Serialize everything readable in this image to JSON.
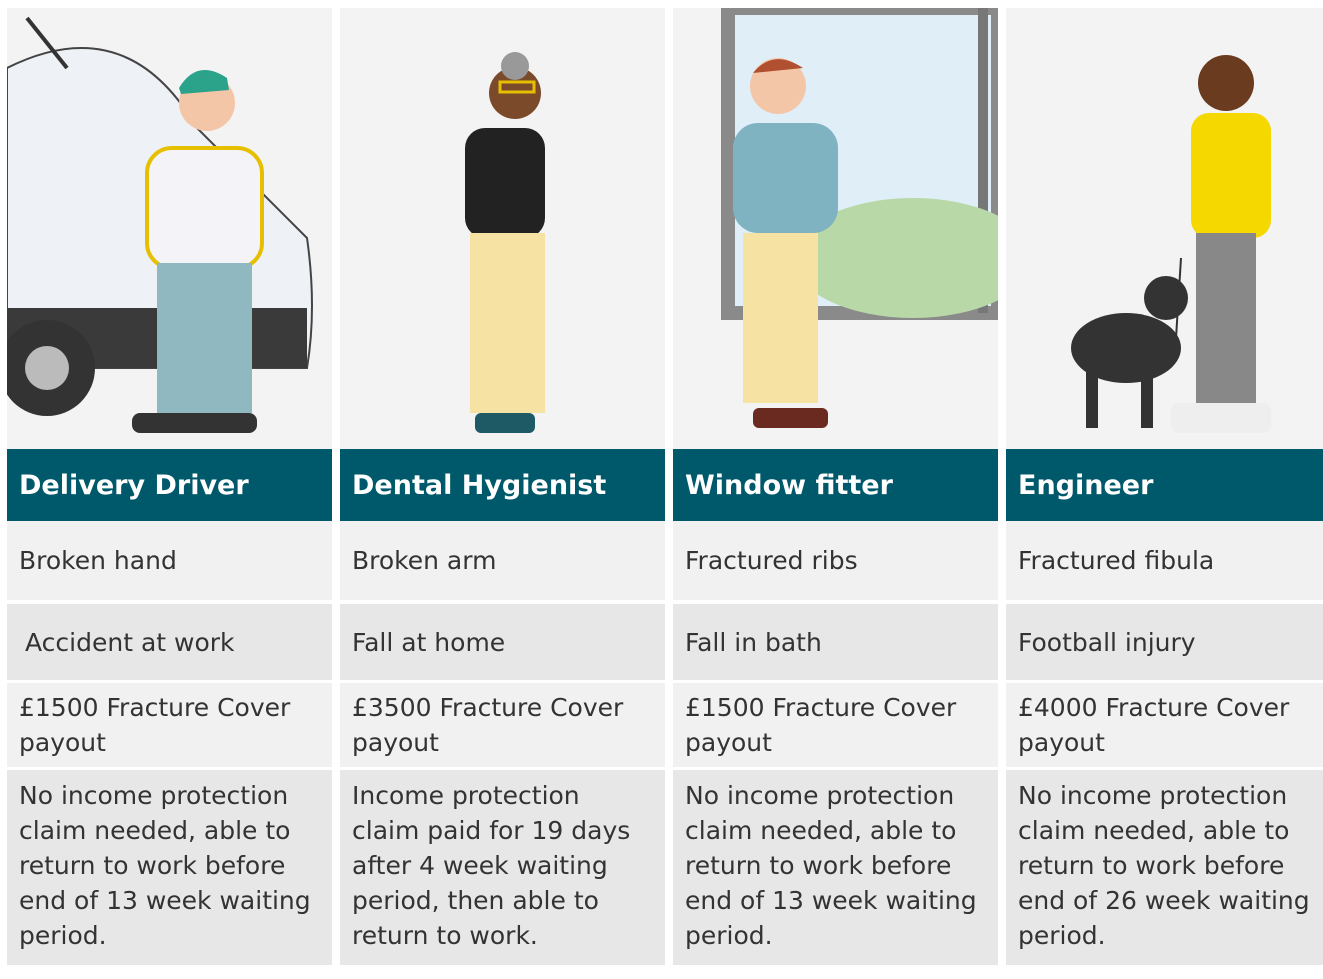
{
  "columns": [
    {
      "title": "Delivery Driver",
      "injury": "Broken hand",
      "cause": "Accident at work",
      "payout": "£1500 Fracture Cover payout",
      "claim": "No income protection claim needed, able to return to work before end of 13 week waiting period."
    },
    {
      "title": "Dental Hygienist",
      "injury": "Broken arm",
      "cause": "Fall at home",
      "payout": "£3500 Fracture Cover payout",
      "claim": "Income protection claim paid for 19 days after 4 week waiting period, then able to return to work."
    },
    {
      "title": "Window fitter",
      "injury": "Fractured ribs",
      "cause": "Fall in bath",
      "payout": "£1500 Fracture Cover payout",
      "claim": "No income protection claim needed, able to return to work before end of 13 week waiting period."
    },
    {
      "title": "Engineer",
      "injury": "Fractured fibula",
      "cause": "Football injury",
      "payout": "£4000 Fracture Cover payout",
      "claim": "No income protection claim needed, able to return to work before end of 26 week waiting period."
    }
  ]
}
